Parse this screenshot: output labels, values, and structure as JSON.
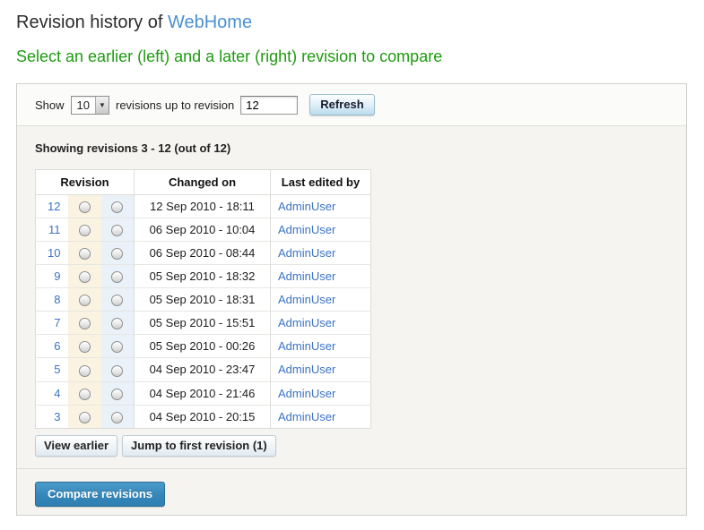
{
  "page": {
    "title_prefix": "Revision history of ",
    "title_link": "WebHome",
    "subtitle": "Select an earlier (left) and a later (right) revision to compare"
  },
  "toolbar": {
    "show_label": "Show",
    "show_value": "10",
    "dropdown_arrow": "▼",
    "between_label": "revisions up to revision",
    "revision_input_value": "12",
    "refresh_label": "Refresh"
  },
  "summary_text": "Showing revisions 3 - 12 (out of 12)",
  "table": {
    "headers": [
      "Revision",
      "Changed on",
      "Last edited by"
    ],
    "rows": [
      {
        "rev": "12",
        "date": "12 Sep 2010 - 18:11",
        "user": "AdminUser"
      },
      {
        "rev": "11",
        "date": "06 Sep 2010 - 10:04",
        "user": "AdminUser"
      },
      {
        "rev": "10",
        "date": "06 Sep 2010 - 08:44",
        "user": "AdminUser"
      },
      {
        "rev": "9",
        "date": "05 Sep 2010 - 18:32",
        "user": "AdminUser"
      },
      {
        "rev": "8",
        "date": "05 Sep 2010 - 18:31",
        "user": "AdminUser"
      },
      {
        "rev": "7",
        "date": "05 Sep 2010 - 15:51",
        "user": "AdminUser"
      },
      {
        "rev": "6",
        "date": "05 Sep 2010 - 00:26",
        "user": "AdminUser"
      },
      {
        "rev": "5",
        "date": "04 Sep 2010 - 23:47",
        "user": "AdminUser"
      },
      {
        "rev": "4",
        "date": "04 Sep 2010 - 21:46",
        "user": "AdminUser"
      },
      {
        "rev": "3",
        "date": "04 Sep 2010 - 20:15",
        "user": "AdminUser"
      }
    ]
  },
  "actions": {
    "view_earlier_label": "View earlier",
    "jump_first_label": "Jump to first revision (1)",
    "compare_label": "Compare revisions"
  },
  "colors": {
    "link_blue": "#3b73c4",
    "title_link_blue": "#4a90d2",
    "hint_green": "#1e9b0f",
    "primary_button_blue": "#3587ba",
    "radio_from_bg": "#faf3e2",
    "radio_to_bg": "#eaf1f8",
    "panel_bg": "#f5f4f1"
  }
}
